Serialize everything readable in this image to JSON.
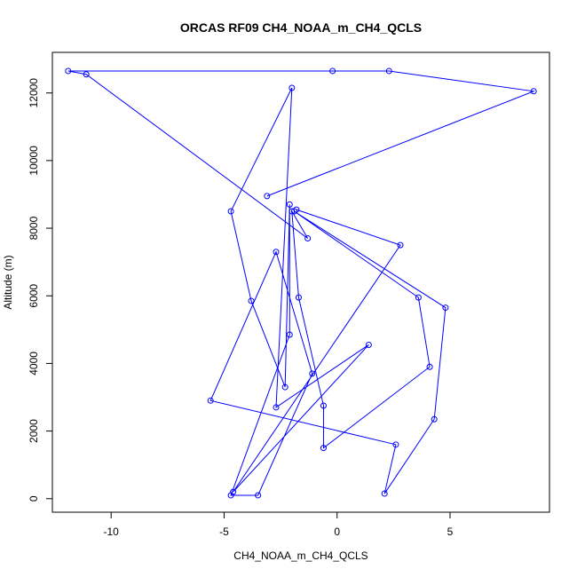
{
  "chart_data": {
    "type": "line",
    "title": "ORCAS RF09 CH4_NOAA_m_CH4_QCLS",
    "xlabel": "CH4_NOAA_m_CH4_QCLS",
    "ylabel": "Altitude (m)",
    "xlim": [
      -12.6,
      9.4
    ],
    "ylim": [
      -400,
      13200
    ],
    "xticks": [
      -10,
      -5,
      0,
      5
    ],
    "yticks": [
      0,
      2000,
      4000,
      6000,
      8000,
      10000,
      12000
    ],
    "series": [
      {
        "color": "#0000ff",
        "marker": "open-circle",
        "points": [
          {
            "x": -1.8,
            "y": 8550
          },
          {
            "x": 2.8,
            "y": 7500
          },
          {
            "x": -4.6,
            "y": 200
          },
          {
            "x": 1.4,
            "y": 4550
          },
          {
            "x": -2.7,
            "y": 2700
          },
          {
            "x": -2.0,
            "y": 12150
          },
          {
            "x": -4.7,
            "y": 8500
          },
          {
            "x": -3.8,
            "y": 5850
          },
          {
            "x": -2.3,
            "y": 3300
          },
          {
            "x": -2.1,
            "y": 8700
          },
          {
            "x": -2.1,
            "y": 4850
          },
          {
            "x": -4.7,
            "y": 100
          },
          {
            "x": -3.5,
            "y": 100
          },
          {
            "x": -1.1,
            "y": 3700
          },
          {
            "x": -2.7,
            "y": 7300
          },
          {
            "x": -5.6,
            "y": 2900
          },
          {
            "x": 2.6,
            "y": 1600
          },
          {
            "x": 2.1,
            "y": 150
          },
          {
            "x": 4.3,
            "y": 2350
          },
          {
            "x": 4.8,
            "y": 5650
          },
          {
            "x": -1.9,
            "y": 8500
          },
          {
            "x": 3.6,
            "y": 5950
          },
          {
            "x": 4.1,
            "y": 3900
          },
          {
            "x": -0.6,
            "y": 1500
          },
          {
            "x": -0.6,
            "y": 2750
          },
          {
            "x": -1.7,
            "y": 5950
          },
          {
            "x": -2.0,
            "y": 8500
          },
          {
            "x": -1.3,
            "y": 7700
          },
          {
            "x": -11.1,
            "y": 12550
          },
          {
            "x": -11.9,
            "y": 12650
          },
          {
            "x": -0.2,
            "y": 12650
          },
          {
            "x": 2.3,
            "y": 12650
          },
          {
            "x": 8.7,
            "y": 12050
          },
          {
            "x": -3.1,
            "y": 8950
          }
        ]
      }
    ]
  }
}
